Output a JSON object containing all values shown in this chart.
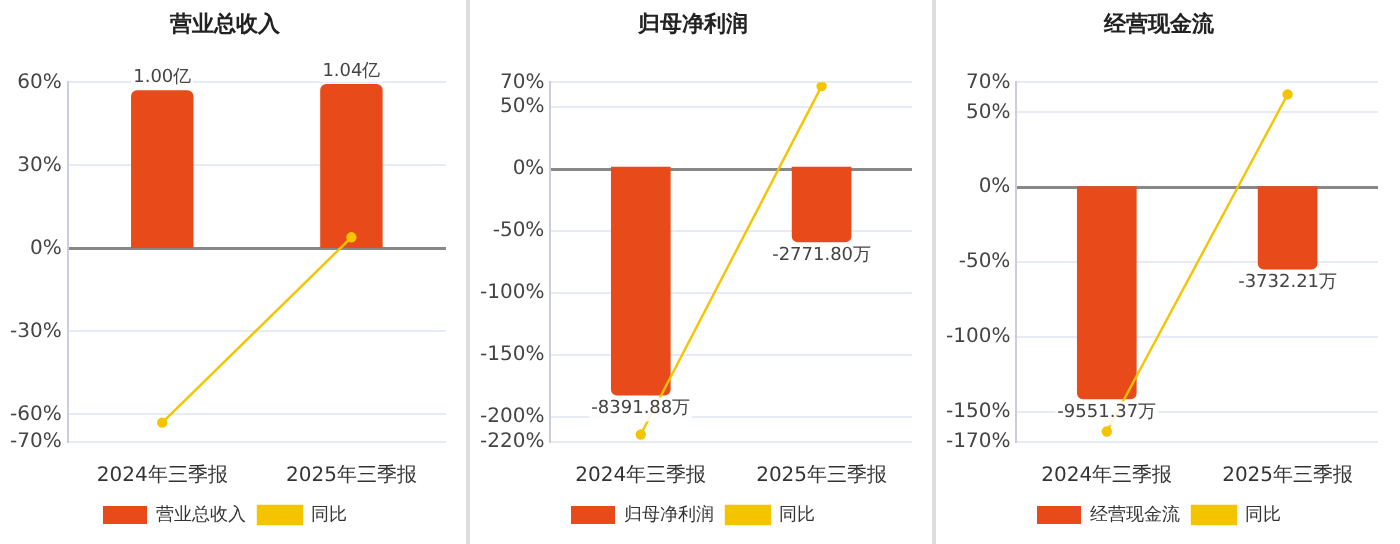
{
  "chart_data": [
    {
      "type": "bar",
      "title": "营业总收入",
      "categories": [
        "2024年三季报",
        "2025年三季报"
      ],
      "series": [
        {
          "name": "营业总收入",
          "axis": "y2",
          "color": "#e84a1a",
          "values": [
            1.0,
            1.04
          ],
          "value_labels": [
            "1.00亿",
            "1.04亿"
          ]
        },
        {
          "name": "同比",
          "type": "line",
          "color": "#f5c400",
          "values": [
            -63,
            4
          ]
        }
      ],
      "ylim": [
        -70,
        60
      ],
      "yticks": [
        {
          "value": 60,
          "label": "60%"
        },
        {
          "value": 30,
          "label": "30%"
        },
        {
          "value": 0,
          "label": "0%"
        },
        {
          "value": -30,
          "label": "-30%"
        },
        {
          "value": -60,
          "label": "-60%"
        },
        {
          "value": -70,
          "label": "-70%"
        }
      ],
      "y2lim": [
        -1.23,
        1.05
      ],
      "grid": "y",
      "legend": "bottom",
      "marker": "circle"
    },
    {
      "type": "bar",
      "title": "归母净利润",
      "categories": [
        "2024年三季报",
        "2025年三季报"
      ],
      "series": [
        {
          "name": "归母净利润",
          "axis": "y2",
          "color": "#e84a1a",
          "values": [
            -8391.88,
            -2771.8
          ],
          "value_labels": [
            "-8391.88万",
            "-2771.80万"
          ]
        },
        {
          "name": "同比",
          "type": "line",
          "color": "#f5c400",
          "values": [
            -214,
            67
          ]
        }
      ],
      "ylim": [
        -220,
        70
      ],
      "yticks": [
        {
          "value": 70,
          "label": "70%"
        },
        {
          "value": 50,
          "label": "50%"
        },
        {
          "value": 0,
          "label": "0%"
        },
        {
          "value": -50,
          "label": "-50%"
        },
        {
          "value": -100,
          "label": "-100%"
        },
        {
          "value": -150,
          "label": "-150%"
        },
        {
          "value": -200,
          "label": "-200%"
        },
        {
          "value": -220,
          "label": "-220%"
        }
      ],
      "y2lim": [
        -10100,
        3100
      ],
      "grid": "y",
      "legend": "bottom",
      "marker": "circle"
    },
    {
      "type": "bar",
      "title": "经营现金流",
      "categories": [
        "2024年三季报",
        "2025年三季报"
      ],
      "series": [
        {
          "name": "经营现金流",
          "axis": "y2",
          "color": "#e84a1a",
          "values": [
            -9551.37,
            -3732.21
          ],
          "value_labels": [
            "-9551.37万",
            "-3732.21万"
          ]
        },
        {
          "name": "同比",
          "type": "line",
          "color": "#f5c400",
          "values": [
            -163,
            62
          ]
        }
      ],
      "ylim": [
        -170,
        70
      ],
      "yticks": [
        {
          "value": 70,
          "label": "70%"
        },
        {
          "value": 50,
          "label": "50%"
        },
        {
          "value": 0,
          "label": "0%"
        },
        {
          "value": -50,
          "label": "-50%"
        },
        {
          "value": -100,
          "label": "-100%"
        },
        {
          "value": -150,
          "label": "-150%"
        },
        {
          "value": -170,
          "label": "-170%"
        }
      ],
      "y2lim": [
        -11470,
        4660
      ],
      "grid": "y",
      "legend": "bottom",
      "marker": "circle"
    }
  ]
}
